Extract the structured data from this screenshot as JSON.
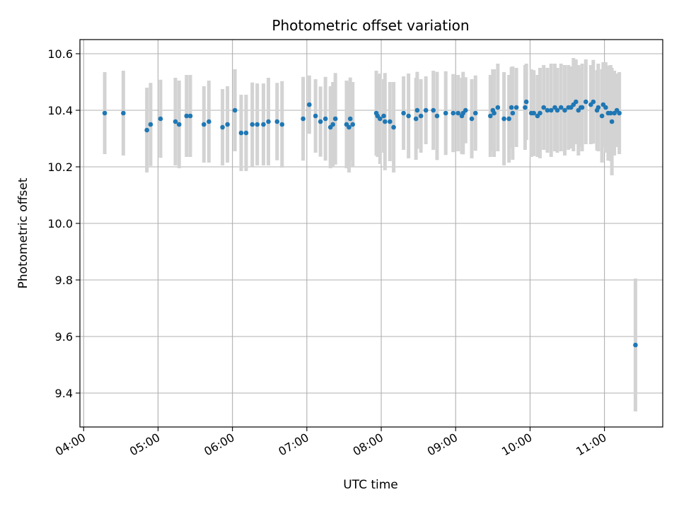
{
  "chart_data": {
    "type": "scatter",
    "title": "Photometric offset variation",
    "xlabel": "UTC time",
    "ylabel": "Photometric offset",
    "x_ticks": [
      "04:00",
      "05:00",
      "06:00",
      "07:00",
      "08:00",
      "09:00",
      "10:00",
      "11:00"
    ],
    "y_ticks": [
      "9.4",
      "9.6",
      "9.8",
      "10.0",
      "10.2",
      "10.4",
      "10.6"
    ],
    "xlim": [
      "03:57",
      "11:47"
    ],
    "ylim": [
      9.28,
      10.65
    ],
    "grid": true,
    "colors": {
      "point": "#1f77b4",
      "errorbar": "#d3d3d3",
      "grid": "#b0b0b0"
    },
    "series": [
      {
        "x": [
          "04:17",
          "04:32",
          "04:51",
          "04:54",
          "05:02",
          "05:14",
          "05:17",
          "05:23",
          "05:26",
          "05:37",
          "05:41",
          "05:52",
          "05:56",
          "06:02",
          "06:07",
          "06:11",
          "06:16",
          "06:20",
          "06:25",
          "06:29",
          "06:36",
          "06:40",
          "06:57",
          "07:02",
          "07:07",
          "07:11",
          "07:15",
          "07:19",
          "07:21",
          "07:23",
          "07:32",
          "07:34",
          "07:35",
          "07:37",
          "07:56",
          "07:57",
          "07:59",
          "08:02",
          "08:03",
          "08:07",
          "08:10",
          "08:18",
          "08:22",
          "08:28",
          "08:29",
          "08:32",
          "08:36",
          "08:42",
          "08:45",
          "08:52",
          "08:58",
          "09:02",
          "09:05",
          "09:06",
          "09:08",
          "09:13",
          "09:16",
          "09:28",
          "09:30",
          "09:31",
          "09:34",
          "09:39",
          "09:43",
          "09:45",
          "09:46",
          "09:49",
          "09:56",
          "09:57",
          "10:01",
          "10:03",
          "10:06",
          "10:08",
          "10:11",
          "10:14",
          "10:17",
          "10:20",
          "10:22",
          "10:25",
          "10:28",
          "10:31",
          "10:33",
          "10:35",
          "10:37",
          "10:39",
          "10:41",
          "10:42",
          "10:45",
          "10:49",
          "10:51",
          "10:54",
          "10:55",
          "10:58",
          "10:59",
          "11:01",
          "11:03",
          "11:05",
          "11:06",
          "11:08",
          "11:10",
          "11:12",
          "11:25"
        ],
        "y": [
          10.39,
          10.39,
          10.33,
          10.35,
          10.37,
          10.36,
          10.35,
          10.38,
          10.38,
          10.35,
          10.36,
          10.34,
          10.35,
          10.4,
          10.32,
          10.32,
          10.35,
          10.35,
          10.35,
          10.36,
          10.36,
          10.35,
          10.37,
          10.42,
          10.38,
          10.36,
          10.37,
          10.34,
          10.35,
          10.37,
          10.35,
          10.34,
          10.37,
          10.35,
          10.39,
          10.38,
          10.37,
          10.38,
          10.36,
          10.36,
          10.34,
          10.39,
          10.38,
          10.37,
          10.4,
          10.38,
          10.4,
          10.4,
          10.38,
          10.39,
          10.39,
          10.39,
          10.38,
          10.39,
          10.4,
          10.37,
          10.39,
          10.38,
          10.4,
          10.39,
          10.41,
          10.37,
          10.37,
          10.41,
          10.39,
          10.41,
          10.41,
          10.43,
          10.39,
          10.39,
          10.38,
          10.39,
          10.41,
          10.4,
          10.4,
          10.41,
          10.4,
          10.41,
          10.4,
          10.41,
          10.41,
          10.42,
          10.43,
          10.4,
          10.41,
          10.41,
          10.43,
          10.42,
          10.43,
          10.4,
          10.41,
          10.38,
          10.42,
          10.41,
          10.39,
          10.39,
          10.36,
          10.39,
          10.4,
          10.39,
          9.57
        ],
        "err": [
          0.145,
          0.15,
          0.15,
          0.147,
          0.138,
          0.155,
          0.155,
          0.145,
          0.145,
          0.135,
          0.145,
          0.135,
          0.135,
          0.145,
          0.135,
          0.135,
          0.148,
          0.145,
          0.145,
          0.155,
          0.137,
          0.153,
          0.148,
          0.103,
          0.13,
          0.124,
          0.148,
          0.145,
          0.15,
          0.162,
          0.155,
          0.16,
          0.146,
          0.15,
          0.15,
          0.145,
          0.16,
          0.13,
          0.172,
          0.14,
          0.16,
          0.13,
          0.15,
          0.145,
          0.136,
          0.13,
          0.12,
          0.14,
          0.156,
          0.148,
          0.138,
          0.135,
          0.135,
          0.146,
          0.117,
          0.14,
          0.133,
          0.145,
          0.145,
          0.155,
          0.155,
          0.165,
          0.155,
          0.143,
          0.165,
          0.14,
          0.15,
          0.135,
          0.155,
          0.152,
          0.145,
          0.16,
          0.15,
          0.15,
          0.165,
          0.155,
          0.15,
          0.155,
          0.16,
          0.15,
          0.145,
          0.165,
          0.15,
          0.16,
          0.14,
          0.155,
          0.15,
          0.14,
          0.148,
          0.142,
          0.155,
          0.165,
          0.15,
          0.16,
          0.168,
          0.17,
          0.19,
          0.15,
          0.13,
          0.145,
          0.235
        ]
      }
    ]
  }
}
